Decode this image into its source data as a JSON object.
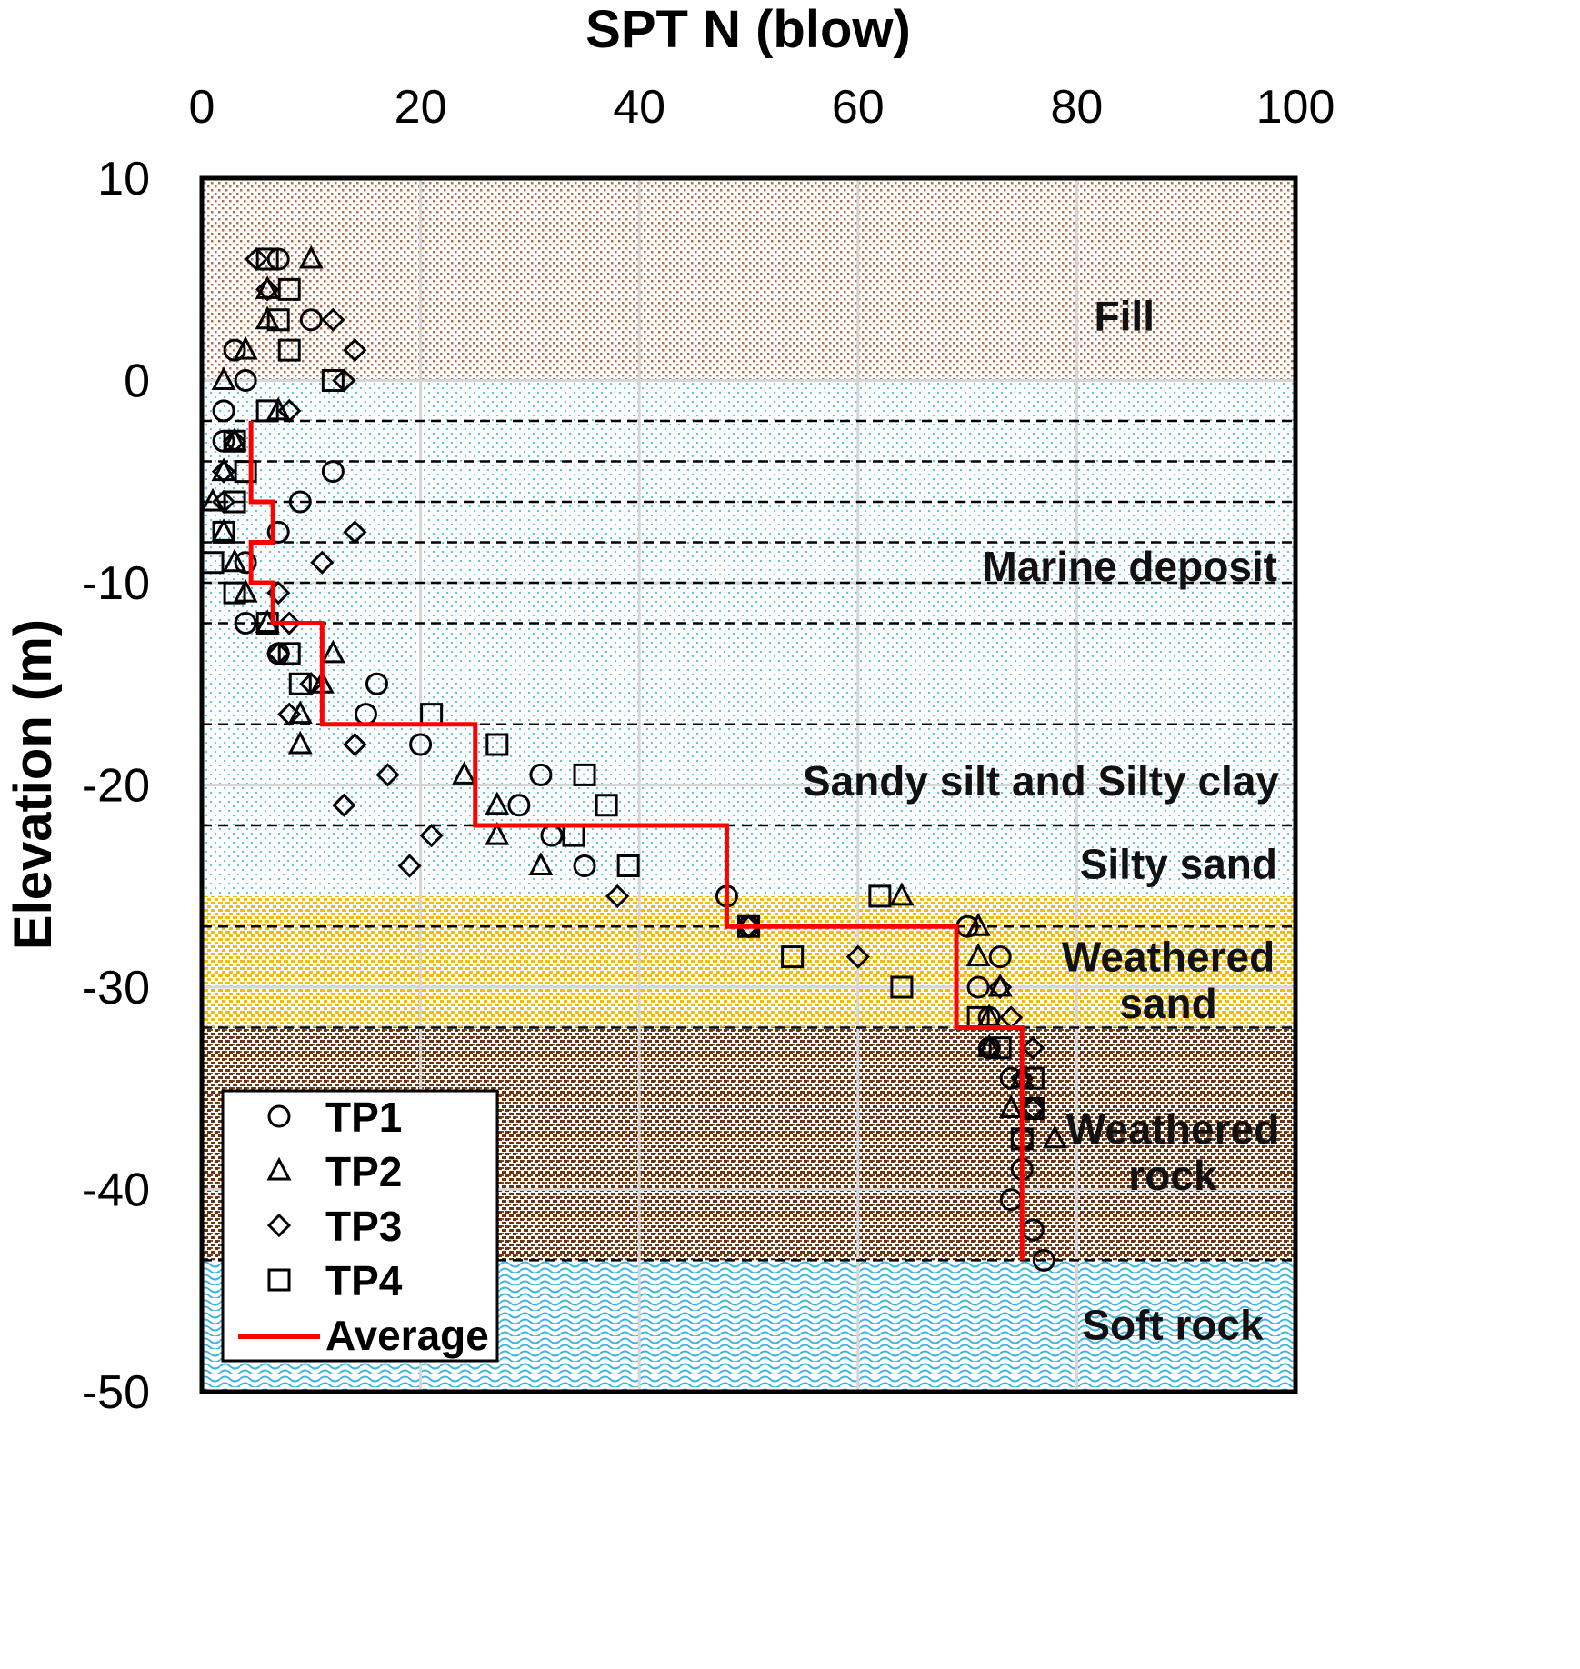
{
  "chart_data": {
    "type": "scatter",
    "title": "",
    "xlabel": "SPT N (blow)",
    "ylabel": "Elevation (m)",
    "xlim": [
      0,
      100
    ],
    "ylim": [
      -50,
      10
    ],
    "x_ticks": [
      0,
      20,
      40,
      60,
      80,
      100
    ],
    "y_ticks": [
      10,
      0,
      -10,
      -20,
      -30,
      -40,
      -50
    ],
    "x_tick_labels": [
      "0",
      "20",
      "40",
      "60",
      "80",
      "100"
    ],
    "y_tick_labels": [
      "10",
      "0",
      "-10",
      "-20",
      "-30",
      "-40",
      "-50"
    ],
    "grid": true,
    "x_axis_position": "top",
    "legend": {
      "position": "bottom-left",
      "entries": [
        "TP1",
        "TP2",
        "TP3",
        "TP4",
        "Average"
      ]
    },
    "colors": {
      "average_line": "#ff0000",
      "fill_dots": "#b0714a",
      "marine_dots": "#5ec4e6",
      "weathered_sand": "#f5b90a",
      "weathered_rock": "#6b3410",
      "soft_rock": "#3fb6e0",
      "marker_stroke": "#000000"
    },
    "layers": [
      {
        "name": "Fill",
        "label_lines": [
          "Fill"
        ],
        "top": 10,
        "bottom": 0,
        "pattern": "fill"
      },
      {
        "name": "Marine deposit",
        "label_lines": [
          "Marine deposit"
        ],
        "top": 0,
        "bottom": -17,
        "pattern": "marine"
      },
      {
        "name": "Sandy silt and Silty clay",
        "label_lines": [
          "Sandy silt and Silty clay"
        ],
        "top": -17,
        "bottom": -22,
        "pattern": "marine"
      },
      {
        "name": "Silty sand",
        "label_lines": [
          "Silty sand"
        ],
        "top": -22,
        "bottom": -25.5,
        "pattern": "marine"
      },
      {
        "name": "Weathered sand",
        "label_lines": [
          "Weathered",
          "sand"
        ],
        "top": -25.5,
        "bottom": -32,
        "pattern": "wsand"
      },
      {
        "name": "Weathered rock",
        "label_lines": [
          "Weathered",
          "rock"
        ],
        "top": -32,
        "bottom": -43.5,
        "pattern": "wrock"
      },
      {
        "name": "Soft rock",
        "label_lines": [
          "Soft rock"
        ],
        "top": -43.5,
        "bottom": -50,
        "pattern": "softrock"
      }
    ],
    "dashed_lines": [
      -2,
      -4,
      -6,
      -8,
      -10,
      -12,
      -17,
      -22,
      -27,
      -32,
      -43.5
    ],
    "series": [
      {
        "name": "TP1",
        "marker": "circle",
        "points": [
          [
            7,
            6
          ],
          [
            10,
            3
          ],
          [
            3,
            1.5
          ],
          [
            4,
            0
          ],
          [
            2,
            -1.5
          ],
          [
            2,
            -3
          ],
          [
            12,
            -4.5
          ],
          [
            9,
            -6
          ],
          [
            7,
            -7.5
          ],
          [
            4,
            -9
          ],
          [
            4,
            -12
          ],
          [
            7,
            -13.5
          ],
          [
            16,
            -15
          ],
          [
            15,
            -16.5
          ],
          [
            20,
            -18
          ],
          [
            31,
            -19.5
          ],
          [
            29,
            -21
          ],
          [
            32,
            -22.5
          ],
          [
            35,
            -24
          ],
          [
            48,
            -25.5
          ],
          [
            50,
            -27
          ],
          [
            70,
            -27
          ],
          [
            73,
            -28.5
          ],
          [
            71,
            -30
          ],
          [
            72,
            -31.5
          ],
          [
            72,
            -33
          ],
          [
            74,
            -34.5
          ],
          [
            76,
            -36
          ],
          [
            75,
            -37.5
          ],
          [
            75,
            -39
          ],
          [
            74,
            -40.5
          ],
          [
            76,
            -42
          ],
          [
            77,
            -43.5
          ]
        ]
      },
      {
        "name": "TP2",
        "marker": "triangle",
        "points": [
          [
            10,
            6
          ],
          [
            6,
            4.5
          ],
          [
            6,
            3
          ],
          [
            4,
            1.5
          ],
          [
            2,
            0
          ],
          [
            7,
            -1.5
          ],
          [
            3,
            -3
          ],
          [
            2,
            -4.5
          ],
          [
            1,
            -6
          ],
          [
            2,
            -7.5
          ],
          [
            3,
            -9
          ],
          [
            4,
            -10.5
          ],
          [
            6,
            -12
          ],
          [
            12,
            -13.5
          ],
          [
            11,
            -15
          ],
          [
            9,
            -16.5
          ],
          [
            9,
            -18
          ],
          [
            24,
            -19.5
          ],
          [
            27,
            -21
          ],
          [
            27,
            -22.5
          ],
          [
            31,
            -24
          ],
          [
            64,
            -25.5
          ],
          [
            71,
            -27
          ],
          [
            71,
            -28.5
          ],
          [
            73,
            -30
          ],
          [
            72,
            -31.5
          ],
          [
            72,
            -33
          ],
          [
            75,
            -34.5
          ],
          [
            74,
            -36
          ],
          [
            78,
            -37.5
          ]
        ]
      },
      {
        "name": "TP3",
        "marker": "diamond",
        "points": [
          [
            5,
            6
          ],
          [
            6,
            4.5
          ],
          [
            12,
            3
          ],
          [
            14,
            1.5
          ],
          [
            13,
            0
          ],
          [
            8,
            -1.5
          ],
          [
            3,
            -3
          ],
          [
            2,
            -4.5
          ],
          [
            2,
            -6
          ],
          [
            14,
            -7.5
          ],
          [
            11,
            -9
          ],
          [
            7,
            -10.5
          ],
          [
            8,
            -12
          ],
          [
            7,
            -13.5
          ],
          [
            10,
            -15
          ],
          [
            8,
            -16.5
          ],
          [
            14,
            -18
          ],
          [
            17,
            -19.5
          ],
          [
            13,
            -21
          ],
          [
            21,
            -22.5
          ],
          [
            19,
            -24
          ],
          [
            38,
            -25.5
          ],
          [
            50,
            -27
          ],
          [
            60,
            -28.5
          ],
          [
            73,
            -30
          ],
          [
            74,
            -31.5
          ],
          [
            72,
            -33
          ],
          [
            76,
            -33
          ],
          [
            75,
            -34.5
          ],
          [
            76,
            -36
          ]
        ]
      },
      {
        "name": "TP4",
        "marker": "square",
        "points": [
          [
            6,
            6
          ],
          [
            8,
            4.5
          ],
          [
            7,
            3
          ],
          [
            8,
            1.5
          ],
          [
            12,
            0
          ],
          [
            6,
            -1.5
          ],
          [
            3,
            -3
          ],
          [
            4,
            -4.5
          ],
          [
            3,
            -6
          ],
          [
            2,
            -7.5
          ],
          [
            1,
            -9
          ],
          [
            3,
            -10.5
          ],
          [
            6,
            -12
          ],
          [
            8,
            -13.5
          ],
          [
            9,
            -15
          ],
          [
            21,
            -16.5
          ],
          [
            27,
            -18
          ],
          [
            35,
            -19.5
          ],
          [
            37,
            -21
          ],
          [
            34,
            -22.5
          ],
          [
            39,
            -24
          ],
          [
            62,
            -25.5
          ],
          [
            50,
            -27
          ],
          [
            54,
            -28.5
          ],
          [
            64,
            -30
          ],
          [
            71,
            -31.5
          ],
          [
            73,
            -33
          ],
          [
            76,
            -34.5
          ],
          [
            76,
            -36
          ],
          [
            75,
            -37.5
          ]
        ]
      },
      {
        "name": "Average",
        "line": true,
        "points": [
          [
            4.5,
            -2
          ],
          [
            4.5,
            -6
          ],
          [
            6.5,
            -6
          ],
          [
            6.5,
            -8
          ],
          [
            4.5,
            -8
          ],
          [
            4.5,
            -10
          ],
          [
            6.5,
            -10
          ],
          [
            6.5,
            -12
          ],
          [
            11,
            -12
          ],
          [
            11,
            -17
          ],
          [
            25,
            -17
          ],
          [
            25,
            -22
          ],
          [
            48,
            -22
          ],
          [
            48,
            -27
          ],
          [
            69,
            -27
          ],
          [
            69,
            -32
          ],
          [
            75,
            -32
          ],
          [
            75,
            -43.5
          ]
        ]
      }
    ]
  }
}
